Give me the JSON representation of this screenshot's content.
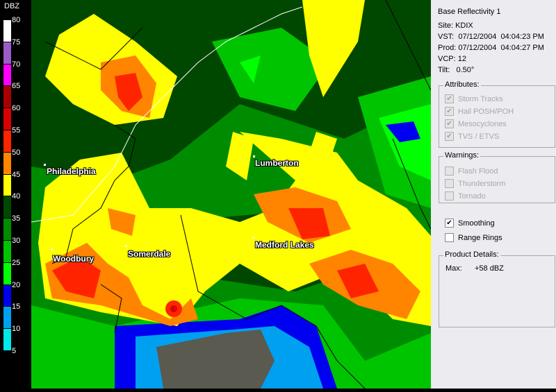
{
  "legend": {
    "title": "DBZ",
    "ticks": [
      "80",
      "75",
      "70",
      "65",
      "60",
      "55",
      "50",
      "45",
      "40",
      "35",
      "30",
      "25",
      "20",
      "15",
      "10",
      "5"
    ],
    "colors": [
      "#ffffff",
      "#9c5cc8",
      "#ff00ff",
      "#a80000",
      "#d80000",
      "#ff2400",
      "#ff8400",
      "#ffff00",
      "#004800",
      "#008c00",
      "#00c400",
      "#00ff00",
      "#0000f0",
      "#00a0f0",
      "#00e8e8"
    ]
  },
  "map": {
    "cities": [
      {
        "name": "Philadelphia"
      },
      {
        "name": "Lumberton"
      },
      {
        "name": "Woodbury"
      },
      {
        "name": "Somerdale"
      },
      {
        "name": "Medford Lakes"
      }
    ]
  },
  "panel": {
    "product": "Base Reflectivity 1",
    "site": "Site:  KDIX",
    "vst": "VST:  07/12/2004  04:04:23 PM",
    "prod": "Prod: 07/12/2004  04:04:27 PM",
    "vcp": "VCP: 12",
    "tilt": "Tilt:   0.50°",
    "attributes": {
      "caption": "Attributes:",
      "items": [
        {
          "label": "Storm Tracks",
          "checked": true
        },
        {
          "label": "Hail POSH/POH",
          "checked": true
        },
        {
          "label": "Mesocyclones",
          "checked": true
        },
        {
          "label": "TVS / ETVS",
          "checked": true
        }
      ]
    },
    "warnings": {
      "caption": "Warnings:",
      "items": [
        {
          "label": "Flash Flood",
          "checked": false
        },
        {
          "label": "Thunderstorm",
          "checked": false
        },
        {
          "label": "Tornado",
          "checked": false
        }
      ]
    },
    "smoothing": {
      "label": "Smoothing",
      "checked": true
    },
    "range_rings": {
      "label": "Range Rings",
      "checked": false
    },
    "details": {
      "caption": "Product Details:",
      "max_label": "Max:",
      "max_value": "+58 dBZ"
    }
  }
}
